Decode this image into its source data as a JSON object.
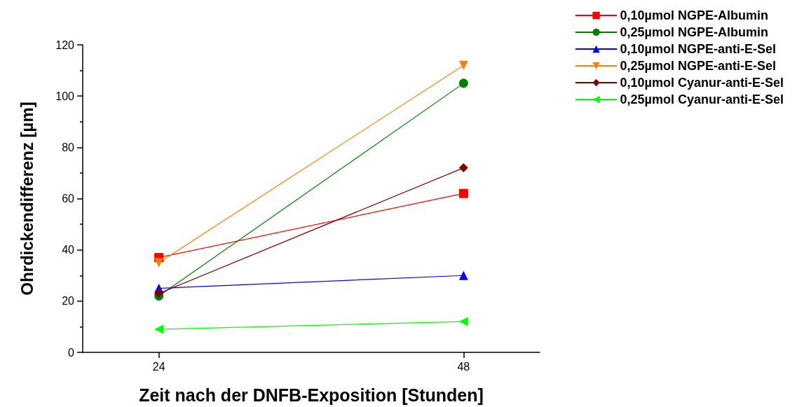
{
  "chart_data": {
    "type": "line",
    "xlabel": "Zeit nach der DNFB-Exposition [Stunden]",
    "ylabel": "Ohrdickendifferenz [µm]",
    "x": [
      24,
      48
    ],
    "xlim": [
      18,
      54
    ],
    "xticks": [
      24,
      48
    ],
    "ylim": [
      0,
      120
    ],
    "yticks": [
      0,
      20,
      40,
      60,
      80,
      100,
      120
    ],
    "grid": false,
    "legend": "top right",
    "series": [
      {
        "name": "0,10µmol NGPE-Albumin",
        "color": "#ff0000",
        "marker": "square",
        "values": [
          37,
          62
        ]
      },
      {
        "name": "0,25µmol NGPE-Albumin",
        "color": "#008000",
        "marker": "circle",
        "values": [
          22,
          105
        ]
      },
      {
        "name": "0,10µmol NGPE-anti-E-Sel",
        "color": "#0000ff",
        "marker": "triangle",
        "values": [
          25,
          30
        ]
      },
      {
        "name": "0,25µmol NGPE-anti-E-Sel",
        "color": "#ff8000",
        "marker": "triangle-down",
        "values": [
          35,
          112
        ]
      },
      {
        "name": "0,10µmol Cyanur-anti-E-Sel",
        "color": "#800000",
        "marker": "diamond",
        "values": [
          23,
          72
        ]
      },
      {
        "name": "0,25µmol Cyanur-anti-E-Sel",
        "color": "#00ff00",
        "marker": "triangle-left",
        "values": [
          9,
          12
        ]
      }
    ]
  }
}
